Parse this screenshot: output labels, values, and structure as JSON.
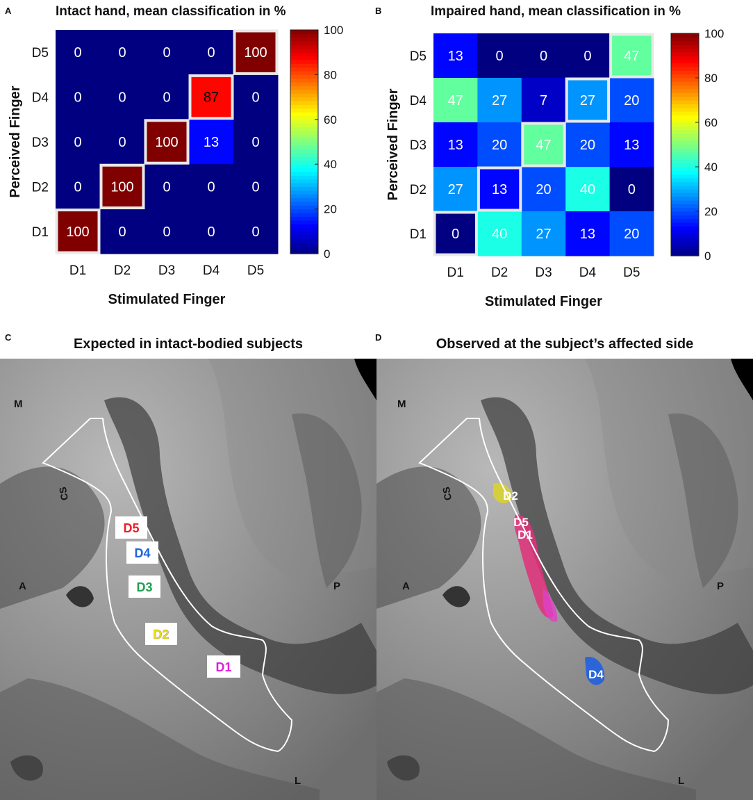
{
  "panels": {
    "A": {
      "letter": "A",
      "title": "Intact hand, mean classification in %"
    },
    "B": {
      "letter": "B",
      "title": "Impaired hand, mean classification in %"
    },
    "C": {
      "letter": "C",
      "title": "Expected in intact-bodied subjects"
    },
    "D": {
      "letter": "D",
      "title": "Observed at the subject’s affected side"
    }
  },
  "chart_data": [
    {
      "type": "heatmap",
      "title": "Intact hand, mean classification in %",
      "xlabel": "Stimulated Finger",
      "ylabel": "Perceived Finger",
      "x": [
        "D1",
        "D2",
        "D3",
        "D4",
        "D5"
      ],
      "y": [
        "D5",
        "D4",
        "D3",
        "D2",
        "D1"
      ],
      "values": [
        [
          0,
          0,
          0,
          0,
          100
        ],
        [
          0,
          0,
          0,
          87,
          0
        ],
        [
          0,
          0,
          100,
          13,
          0
        ],
        [
          0,
          100,
          0,
          0,
          0
        ],
        [
          100,
          0,
          0,
          0,
          0
        ]
      ],
      "colorbar": {
        "range": [
          0,
          100
        ],
        "ticks": [
          0,
          20,
          40,
          60,
          80,
          100
        ],
        "colormap": "jet"
      }
    },
    {
      "type": "heatmap",
      "title": "Impaired hand, mean classification in %",
      "xlabel": "Stimulated Finger",
      "ylabel": "Perceived Finger",
      "x": [
        "D1",
        "D2",
        "D3",
        "D4",
        "D5"
      ],
      "y": [
        "D5",
        "D4",
        "D3",
        "D2",
        "D1"
      ],
      "values": [
        [
          13,
          0,
          0,
          0,
          47
        ],
        [
          47,
          27,
          7,
          27,
          20
        ],
        [
          13,
          20,
          47,
          20,
          13
        ],
        [
          27,
          13,
          20,
          40,
          0
        ],
        [
          0,
          40,
          27,
          13,
          20
        ]
      ],
      "colorbar": {
        "range": [
          0,
          100
        ],
        "ticks": [
          0,
          20,
          40,
          60,
          80,
          100
        ],
        "colormap": "jet"
      }
    }
  ],
  "brainC": {
    "labels": {
      "M": "M",
      "A": "A",
      "P": "P",
      "L": "L",
      "cs": "CS"
    },
    "fingers": [
      {
        "text": "D5",
        "color": "#e8202a"
      },
      {
        "text": "D4",
        "color": "#1e64d8"
      },
      {
        "text": "D3",
        "color": "#1fa050"
      },
      {
        "text": "D2",
        "color": "#f0e000"
      },
      {
        "text": "D1",
        "color": "#e020d8"
      }
    ]
  },
  "brainD": {
    "labels": {
      "M": "M",
      "A": "A",
      "P": "P",
      "L": "L",
      "cs": "CS"
    },
    "fingers": [
      {
        "text": "D2",
        "color": "#e6e020"
      },
      {
        "text": "D5",
        "color": "#e02a60"
      },
      {
        "text": "D1",
        "color": "#e63c90"
      },
      {
        "text": "D4",
        "color": "#2060e0"
      }
    ]
  }
}
